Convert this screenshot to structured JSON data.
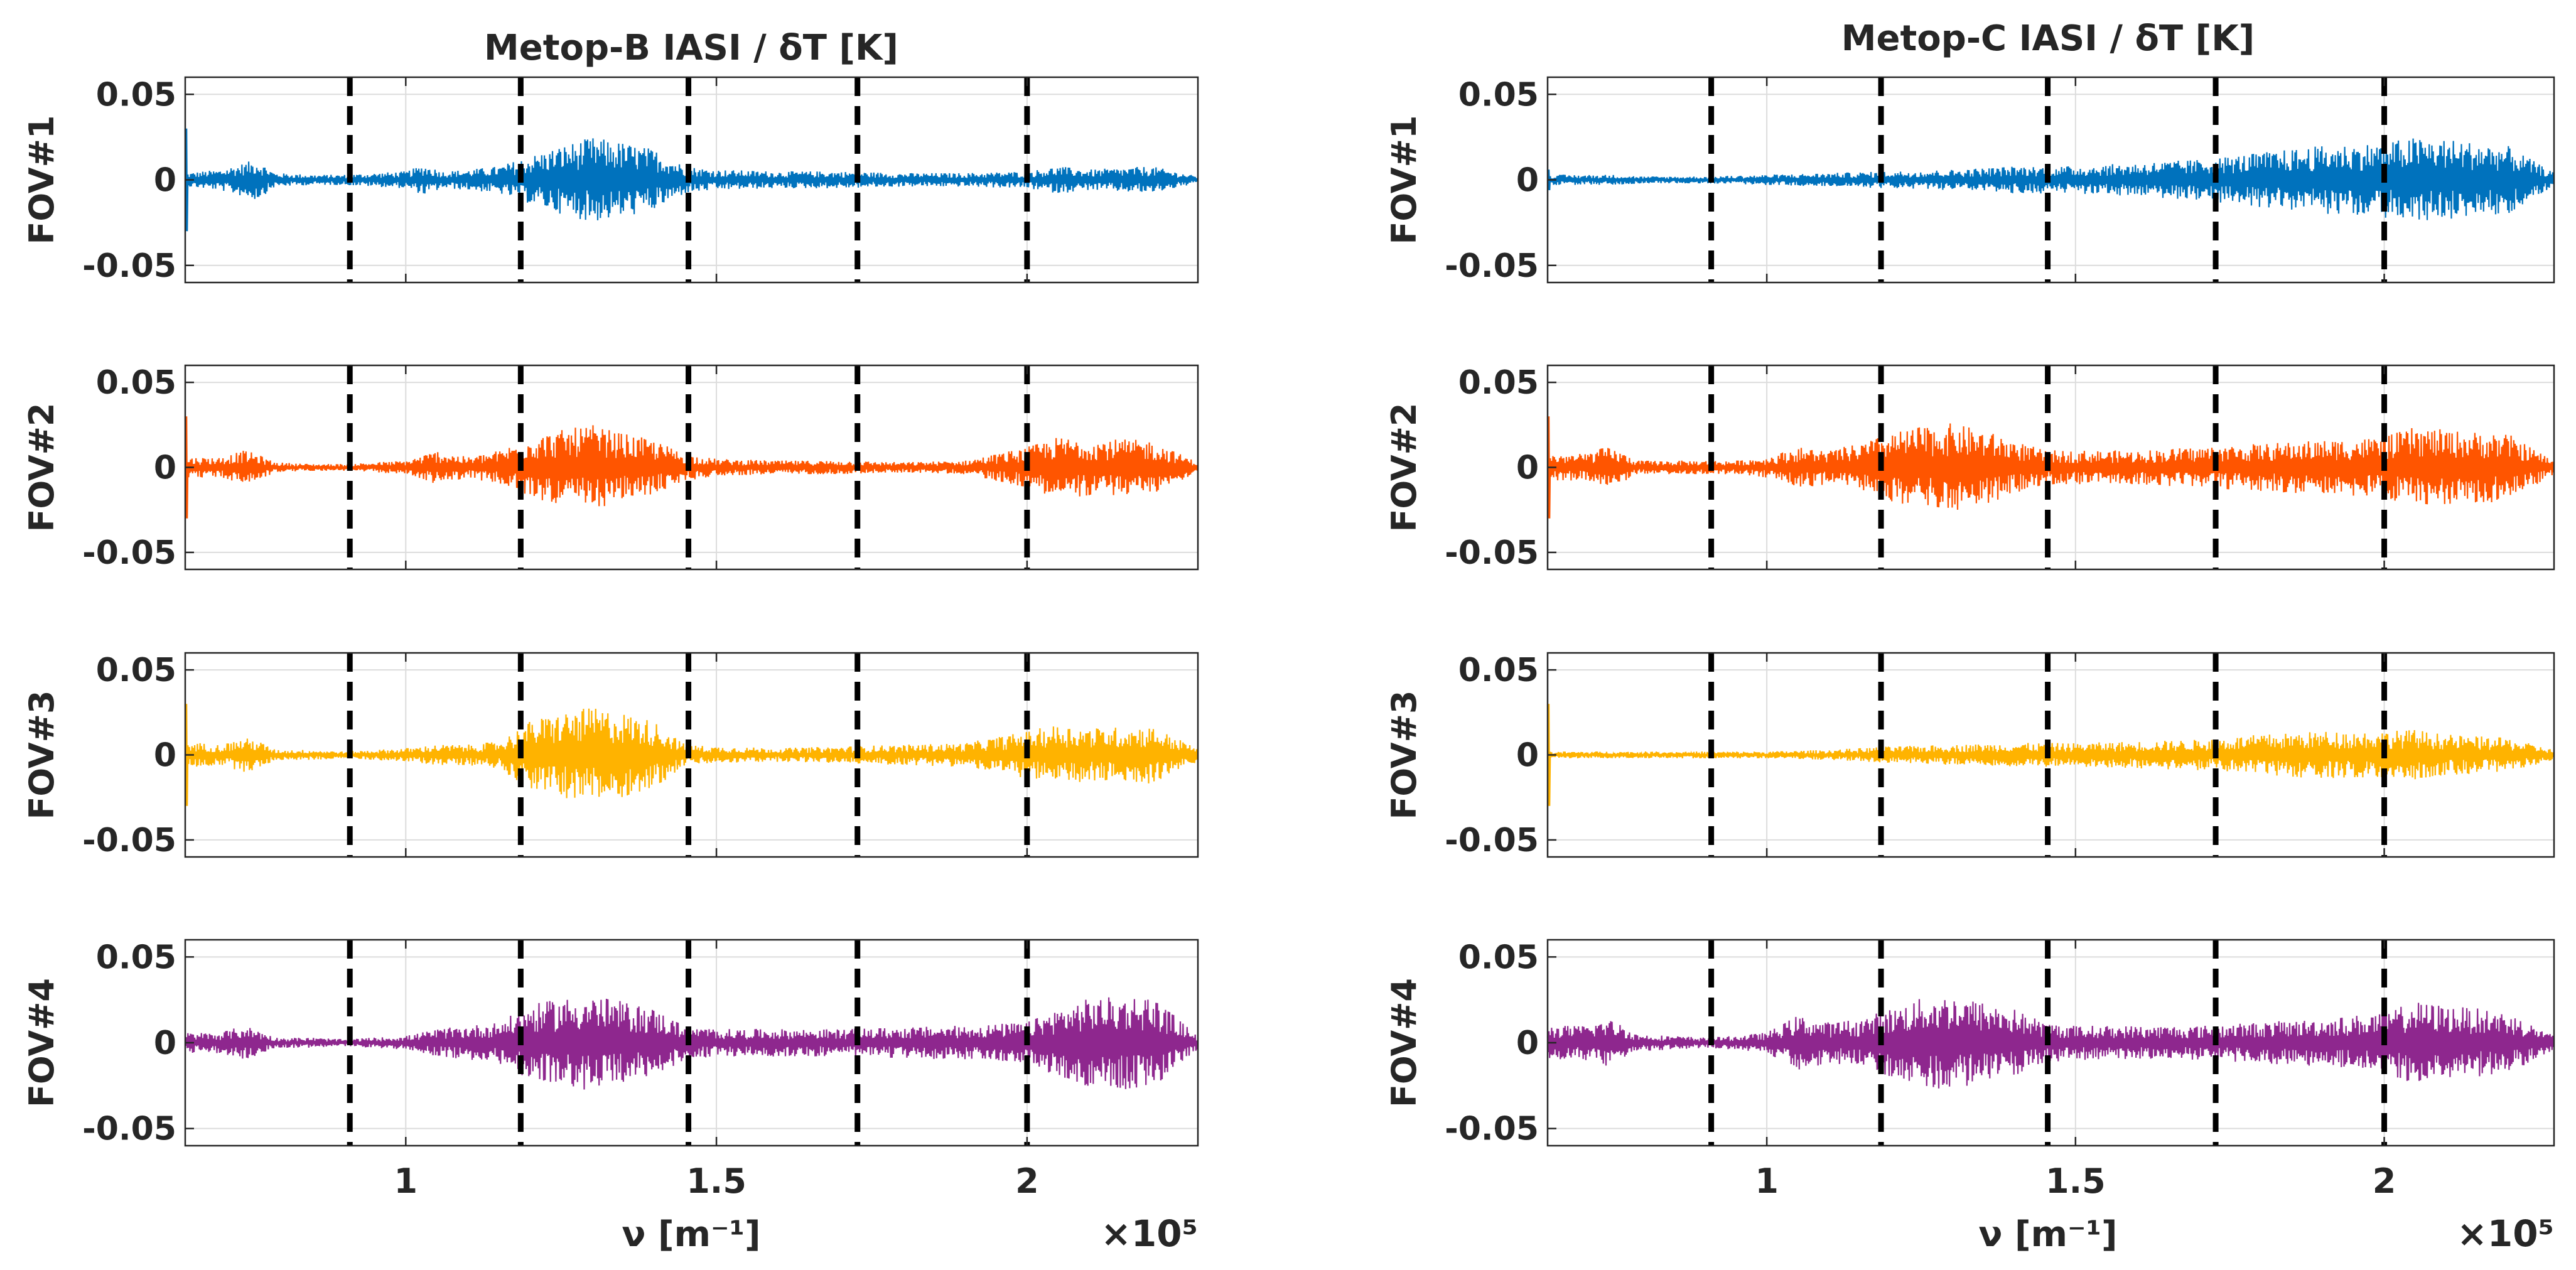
{
  "chart_data": {
    "type": "line",
    "columns": [
      {
        "title": "Metop-B IASI / δT [K]",
        "xlabel": "ν [m⁻¹]",
        "exponent_label": "×10⁵"
      },
      {
        "title": "Metop-C IASI / δT [K]",
        "xlabel": "ν [m⁻¹]",
        "exponent_label": "×10⁵"
      }
    ],
    "rows": [
      {
        "ylabel": "FOV#1",
        "color": "#0072BD"
      },
      {
        "ylabel": "FOV#2",
        "color": "#FF5500"
      },
      {
        "ylabel": "FOV#3",
        "color": "#FFB300"
      },
      {
        "ylabel": "FOV#4",
        "color": "#8E278E"
      }
    ],
    "xlim": [
      0.645,
      2.275
    ],
    "xticks": [
      1,
      1.5,
      2
    ],
    "xtick_labels": [
      "1",
      "1.5",
      "2"
    ],
    "x_scale_factor": 100000,
    "ylim": [
      -0.06,
      0.06
    ],
    "yticks": [
      -0.05,
      0,
      0.05
    ],
    "ytick_labels": [
      "-0.05",
      "0",
      "0.05"
    ],
    "grid": true,
    "band_boundaries": [
      0.91,
      1.185,
      1.455,
      1.727,
      2.0
    ],
    "envelopes": {
      "Metop-B": {
        "FOV#1": [
          [
            0.645,
            0.004
          ],
          [
            0.7,
            0.006
          ],
          [
            0.74,
            0.01
          ],
          [
            0.76,
            0.012
          ],
          [
            0.79,
            0.004
          ],
          [
            0.85,
            0.003
          ],
          [
            0.9,
            0.003
          ],
          [
            0.95,
            0.004
          ],
          [
            1.0,
            0.005
          ],
          [
            1.03,
            0.009
          ],
          [
            1.06,
            0.005
          ],
          [
            1.1,
            0.006
          ],
          [
            1.15,
            0.008
          ],
          [
            1.2,
            0.014
          ],
          [
            1.25,
            0.02
          ],
          [
            1.3,
            0.025
          ],
          [
            1.35,
            0.022
          ],
          [
            1.4,
            0.018
          ],
          [
            1.45,
            0.008
          ],
          [
            1.5,
            0.006
          ],
          [
            1.6,
            0.005
          ],
          [
            1.7,
            0.005
          ],
          [
            1.8,
            0.004
          ],
          [
            1.9,
            0.004
          ],
          [
            2.0,
            0.005
          ],
          [
            2.05,
            0.008
          ],
          [
            2.1,
            0.006
          ],
          [
            2.2,
            0.008
          ],
          [
            2.275,
            0.002
          ]
        ],
        "FOV#2": [
          [
            0.645,
            0.006
          ],
          [
            0.7,
            0.006
          ],
          [
            0.74,
            0.01
          ],
          [
            0.76,
            0.008
          ],
          [
            0.79,
            0.003
          ],
          [
            0.85,
            0.002
          ],
          [
            0.9,
            0.002
          ],
          [
            0.95,
            0.003
          ],
          [
            1.0,
            0.004
          ],
          [
            1.05,
            0.01
          ],
          [
            1.1,
            0.006
          ],
          [
            1.15,
            0.01
          ],
          [
            1.2,
            0.018
          ],
          [
            1.25,
            0.022
          ],
          [
            1.3,
            0.025
          ],
          [
            1.35,
            0.02
          ],
          [
            1.4,
            0.016
          ],
          [
            1.45,
            0.008
          ],
          [
            1.5,
            0.005
          ],
          [
            1.6,
            0.004
          ],
          [
            1.7,
            0.004
          ],
          [
            1.8,
            0.003
          ],
          [
            1.9,
            0.004
          ],
          [
            2.0,
            0.012
          ],
          [
            2.05,
            0.018
          ],
          [
            2.1,
            0.017
          ],
          [
            2.2,
            0.016
          ],
          [
            2.275,
            0.003
          ]
        ],
        "FOV#3": [
          [
            0.645,
            0.008
          ],
          [
            0.7,
            0.006
          ],
          [
            0.74,
            0.01
          ],
          [
            0.76,
            0.009
          ],
          [
            0.79,
            0.003
          ],
          [
            0.85,
            0.003
          ],
          [
            0.9,
            0.002
          ],
          [
            0.95,
            0.003
          ],
          [
            1.0,
            0.004
          ],
          [
            1.05,
            0.006
          ],
          [
            1.1,
            0.006
          ],
          [
            1.15,
            0.008
          ],
          [
            1.2,
            0.02
          ],
          [
            1.25,
            0.025
          ],
          [
            1.3,
            0.028
          ],
          [
            1.35,
            0.025
          ],
          [
            1.4,
            0.02
          ],
          [
            1.45,
            0.006
          ],
          [
            1.5,
            0.005
          ],
          [
            1.6,
            0.004
          ],
          [
            1.7,
            0.005
          ],
          [
            1.8,
            0.006
          ],
          [
            1.9,
            0.007
          ],
          [
            2.0,
            0.014
          ],
          [
            2.05,
            0.018
          ],
          [
            2.1,
            0.016
          ],
          [
            2.2,
            0.017
          ],
          [
            2.275,
            0.004
          ]
        ],
        "FOV#4": [
          [
            0.645,
            0.006
          ],
          [
            0.7,
            0.006
          ],
          [
            0.74,
            0.01
          ],
          [
            0.76,
            0.008
          ],
          [
            0.79,
            0.003
          ],
          [
            0.85,
            0.003
          ],
          [
            0.9,
            0.002
          ],
          [
            0.95,
            0.003
          ],
          [
            1.0,
            0.004
          ],
          [
            1.05,
            0.008
          ],
          [
            1.1,
            0.01
          ],
          [
            1.15,
            0.012
          ],
          [
            1.2,
            0.022
          ],
          [
            1.25,
            0.026
          ],
          [
            1.3,
            0.028
          ],
          [
            1.35,
            0.024
          ],
          [
            1.4,
            0.02
          ],
          [
            1.45,
            0.01
          ],
          [
            1.5,
            0.008
          ],
          [
            1.6,
            0.008
          ],
          [
            1.7,
            0.008
          ],
          [
            1.8,
            0.009
          ],
          [
            1.9,
            0.01
          ],
          [
            2.0,
            0.012
          ],
          [
            2.05,
            0.02
          ],
          [
            2.1,
            0.026
          ],
          [
            2.2,
            0.028
          ],
          [
            2.275,
            0.004
          ]
        ]
      },
      "Metop-C": {
        "FOV#1": [
          [
            0.645,
            0.003
          ],
          [
            0.7,
            0.003
          ],
          [
            0.75,
            0.003
          ],
          [
            0.8,
            0.002
          ],
          [
            0.9,
            0.002
          ],
          [
            1.0,
            0.003
          ],
          [
            1.1,
            0.004
          ],
          [
            1.2,
            0.005
          ],
          [
            1.3,
            0.006
          ],
          [
            1.4,
            0.008
          ],
          [
            1.5,
            0.008
          ],
          [
            1.6,
            0.01
          ],
          [
            1.7,
            0.012
          ],
          [
            1.8,
            0.016
          ],
          [
            1.9,
            0.02
          ],
          [
            2.0,
            0.022
          ],
          [
            2.05,
            0.025
          ],
          [
            2.1,
            0.024
          ],
          [
            2.2,
            0.02
          ],
          [
            2.275,
            0.004
          ]
        ],
        "FOV#2": [
          [
            0.645,
            0.008
          ],
          [
            0.7,
            0.008
          ],
          [
            0.74,
            0.012
          ],
          [
            0.76,
            0.01
          ],
          [
            0.79,
            0.004
          ],
          [
            0.85,
            0.004
          ],
          [
            0.9,
            0.004
          ],
          [
            0.95,
            0.004
          ],
          [
            1.0,
            0.006
          ],
          [
            1.05,
            0.012
          ],
          [
            1.1,
            0.01
          ],
          [
            1.15,
            0.014
          ],
          [
            1.2,
            0.02
          ],
          [
            1.25,
            0.024
          ],
          [
            1.3,
            0.026
          ],
          [
            1.35,
            0.022
          ],
          [
            1.4,
            0.016
          ],
          [
            1.45,
            0.01
          ],
          [
            1.5,
            0.01
          ],
          [
            1.6,
            0.01
          ],
          [
            1.7,
            0.012
          ],
          [
            1.8,
            0.014
          ],
          [
            1.9,
            0.016
          ],
          [
            2.0,
            0.018
          ],
          [
            2.05,
            0.024
          ],
          [
            2.1,
            0.022
          ],
          [
            2.2,
            0.02
          ],
          [
            2.275,
            0.004
          ]
        ],
        "FOV#3": [
          [
            0.645,
            0.002
          ],
          [
            0.7,
            0.002
          ],
          [
            0.75,
            0.002
          ],
          [
            0.8,
            0.002
          ],
          [
            0.9,
            0.002
          ],
          [
            1.0,
            0.002
          ],
          [
            1.1,
            0.003
          ],
          [
            1.2,
            0.005
          ],
          [
            1.3,
            0.006
          ],
          [
            1.4,
            0.007
          ],
          [
            1.5,
            0.007
          ],
          [
            1.6,
            0.008
          ],
          [
            1.7,
            0.009
          ],
          [
            1.8,
            0.012
          ],
          [
            1.9,
            0.014
          ],
          [
            2.0,
            0.014
          ],
          [
            2.05,
            0.015
          ],
          [
            2.1,
            0.012
          ],
          [
            2.2,
            0.01
          ],
          [
            2.275,
            0.003
          ]
        ],
        "FOV#4": [
          [
            0.645,
            0.01
          ],
          [
            0.7,
            0.01
          ],
          [
            0.74,
            0.014
          ],
          [
            0.76,
            0.012
          ],
          [
            0.79,
            0.005
          ],
          [
            0.85,
            0.004
          ],
          [
            0.9,
            0.003
          ],
          [
            0.95,
            0.004
          ],
          [
            1.0,
            0.006
          ],
          [
            1.05,
            0.016
          ],
          [
            1.1,
            0.012
          ],
          [
            1.15,
            0.014
          ],
          [
            1.2,
            0.02
          ],
          [
            1.25,
            0.026
          ],
          [
            1.3,
            0.028
          ],
          [
            1.35,
            0.024
          ],
          [
            1.4,
            0.02
          ],
          [
            1.45,
            0.012
          ],
          [
            1.5,
            0.01
          ],
          [
            1.6,
            0.01
          ],
          [
            1.7,
            0.01
          ],
          [
            1.8,
            0.012
          ],
          [
            1.9,
            0.014
          ],
          [
            2.0,
            0.018
          ],
          [
            2.05,
            0.024
          ],
          [
            2.1,
            0.022
          ],
          [
            2.2,
            0.018
          ],
          [
            2.275,
            0.004
          ]
        ]
      }
    }
  }
}
